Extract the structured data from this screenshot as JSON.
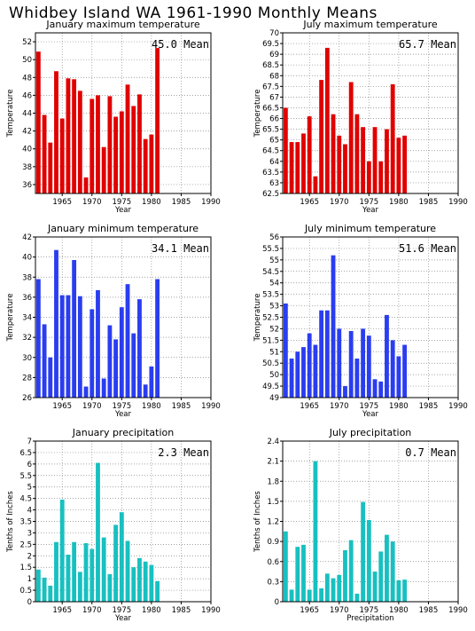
{
  "page": {
    "title": "Whidbey Island WA    1961-1990 Monthly Means"
  },
  "colors": {
    "red": "#e00000",
    "blue": "#2a3df0",
    "cyan": "#18c0c0"
  },
  "chart_data": [
    {
      "type": "bar",
      "title": "January maximum temperature",
      "color": "red",
      "ylabel": "Temperature",
      "xlabel": "Year",
      "mean_text": "45.0 Mean",
      "xlim": [
        1960.5,
        1990
      ],
      "ylim": [
        35,
        53
      ],
      "yticks": [
        "36",
        "38",
        "40",
        "42",
        "44",
        "46",
        "48",
        "50",
        "52"
      ],
      "xticks": [
        "1965",
        "1970",
        "1975",
        "1980",
        "1985",
        "1990"
      ],
      "x": [
        1961,
        1962,
        1963,
        1964,
        1965,
        1966,
        1967,
        1968,
        1969,
        1970,
        1971,
        1972,
        1973,
        1974,
        1975,
        1976,
        1977,
        1978,
        1979,
        1980,
        1981
      ],
      "values": [
        50.9,
        43.8,
        40.7,
        48.7,
        43.4,
        47.9,
        47.8,
        46.5,
        36.8,
        45.6,
        46.0,
        40.2,
        45.9,
        43.6,
        44.2,
        47.2,
        44.8,
        46.1,
        41.1,
        41.6,
        51.3
      ]
    },
    {
      "type": "bar",
      "title": "July maximum temperature",
      "color": "red",
      "ylabel": "Temperature",
      "xlabel": "Year",
      "mean_text": "65.7 Mean",
      "xlim": [
        1960.5,
        1990
      ],
      "ylim": [
        62.5,
        70
      ],
      "yticks": [
        "62.5",
        "63",
        "63.5",
        "64",
        "64.5",
        "65",
        "65.5",
        "66",
        "66.5",
        "67",
        "67.5",
        "68",
        "68.5",
        "69",
        "69.5",
        "70"
      ],
      "xticks": [
        "1965",
        "1970",
        "1975",
        "1980",
        "1985",
        "1990"
      ],
      "x": [
        1961,
        1962,
        1963,
        1964,
        1965,
        1966,
        1967,
        1968,
        1969,
        1970,
        1971,
        1972,
        1973,
        1974,
        1975,
        1976,
        1977,
        1978,
        1979,
        1980,
        1981
      ],
      "values": [
        66.5,
        64.9,
        64.9,
        65.3,
        66.1,
        63.3,
        67.8,
        69.3,
        66.2,
        65.2,
        64.8,
        67.7,
        66.2,
        65.6,
        64.0,
        65.6,
        64.0,
        65.5,
        67.6,
        65.1,
        65.2
      ]
    },
    {
      "type": "bar",
      "title": "January minimum temperature",
      "color": "blue",
      "ylabel": "Temperature",
      "xlabel": "Year",
      "mean_text": "34.1 Mean",
      "xlim": [
        1960.5,
        1990
      ],
      "ylim": [
        26,
        42
      ],
      "yticks": [
        "26",
        "28",
        "30",
        "32",
        "34",
        "36",
        "38",
        "40",
        "42"
      ],
      "xticks": [
        "1965",
        "1970",
        "1975",
        "1980",
        "1985",
        "1990"
      ],
      "x": [
        1961,
        1962,
        1963,
        1964,
        1965,
        1966,
        1967,
        1968,
        1969,
        1970,
        1971,
        1972,
        1973,
        1974,
        1975,
        1976,
        1977,
        1978,
        1979,
        1980,
        1981
      ],
      "values": [
        37.8,
        33.3,
        30.0,
        40.7,
        36.2,
        36.2,
        39.7,
        36.1,
        27.1,
        34.8,
        36.7,
        27.9,
        33.2,
        31.8,
        35.0,
        37.3,
        32.4,
        35.8,
        27.3,
        29.1,
        37.8
      ]
    },
    {
      "type": "bar",
      "title": "July minimum temperature",
      "color": "blue",
      "ylabel": "Temperature",
      "xlabel": "Year",
      "mean_text": "51.6 Mean",
      "xlim": [
        1960.5,
        1990
      ],
      "ylim": [
        49,
        56
      ],
      "yticks": [
        "49",
        "49.5",
        "50",
        "50.5",
        "51",
        "51.5",
        "52",
        "52.5",
        "53",
        "53.5",
        "54",
        "54.5",
        "55",
        "55.5",
        "56"
      ],
      "xticks": [
        "1965",
        "1970",
        "1975",
        "1980",
        "1985",
        "1990"
      ],
      "x": [
        1961,
        1962,
        1963,
        1964,
        1965,
        1966,
        1967,
        1968,
        1969,
        1970,
        1971,
        1972,
        1973,
        1974,
        1975,
        1976,
        1977,
        1978,
        1979,
        1980,
        1981
      ],
      "values": [
        53.1,
        50.7,
        51.0,
        51.2,
        51.8,
        51.3,
        52.8,
        52.8,
        55.2,
        52.0,
        49.5,
        51.9,
        50.7,
        52.0,
        51.7,
        49.8,
        49.7,
        52.6,
        51.5,
        50.8,
        51.3
      ]
    },
    {
      "type": "bar",
      "title": "January precipitation",
      "color": "cyan",
      "ylabel": "Tenths of Inches",
      "xlabel": "Year",
      "mean_text": "2.3 Mean",
      "xlim": [
        1960.5,
        1990
      ],
      "ylim": [
        0,
        7
      ],
      "yticks": [
        "0",
        "0.5",
        "1",
        "1.5",
        "2",
        "2.5",
        "3",
        "3.5",
        "4",
        "4.5",
        "5",
        "5.5",
        "6",
        "6.5",
        "7"
      ],
      "xticks": [
        "1965",
        "1970",
        "1975",
        "1980",
        "1985",
        "1990"
      ],
      "x": [
        1961,
        1962,
        1963,
        1964,
        1965,
        1966,
        1967,
        1968,
        1969,
        1970,
        1971,
        1972,
        1973,
        1974,
        1975,
        1976,
        1977,
        1978,
        1979,
        1980,
        1981
      ],
      "values": [
        1.4,
        1.05,
        0.7,
        2.6,
        4.45,
        2.05,
        2.6,
        1.3,
        2.55,
        2.3,
        6.05,
        2.8,
        1.2,
        3.35,
        3.9,
        2.65,
        1.5,
        1.9,
        1.75,
        1.6,
        0.9
      ]
    },
    {
      "type": "bar",
      "title": "July precipitation",
      "color": "cyan",
      "ylabel": "Tenths of Inches",
      "xlabel": "Precipitation",
      "mean_text": "0.7 Mean",
      "xlim": [
        1960.5,
        1990
      ],
      "ylim": [
        0,
        2.4
      ],
      "yticks": [
        "0",
        "0.3",
        "0.6",
        "0.9",
        "1.2",
        "1.5",
        "1.8",
        "2.1",
        "2.4"
      ],
      "xticks": [
        "1965",
        "1970",
        "1975",
        "1980",
        "1985",
        "1990"
      ],
      "x": [
        1961,
        1962,
        1963,
        1964,
        1965,
        1966,
        1967,
        1968,
        1969,
        1970,
        1971,
        1972,
        1973,
        1974,
        1975,
        1976,
        1977,
        1978,
        1979,
        1980,
        1981
      ],
      "values": [
        1.05,
        0.18,
        0.82,
        0.85,
        0.18,
        2.1,
        0.2,
        0.42,
        0.35,
        0.4,
        0.77,
        0.92,
        0.12,
        1.49,
        1.22,
        0.45,
        0.75,
        1.0,
        0.9,
        0.32,
        0.33
      ]
    }
  ]
}
